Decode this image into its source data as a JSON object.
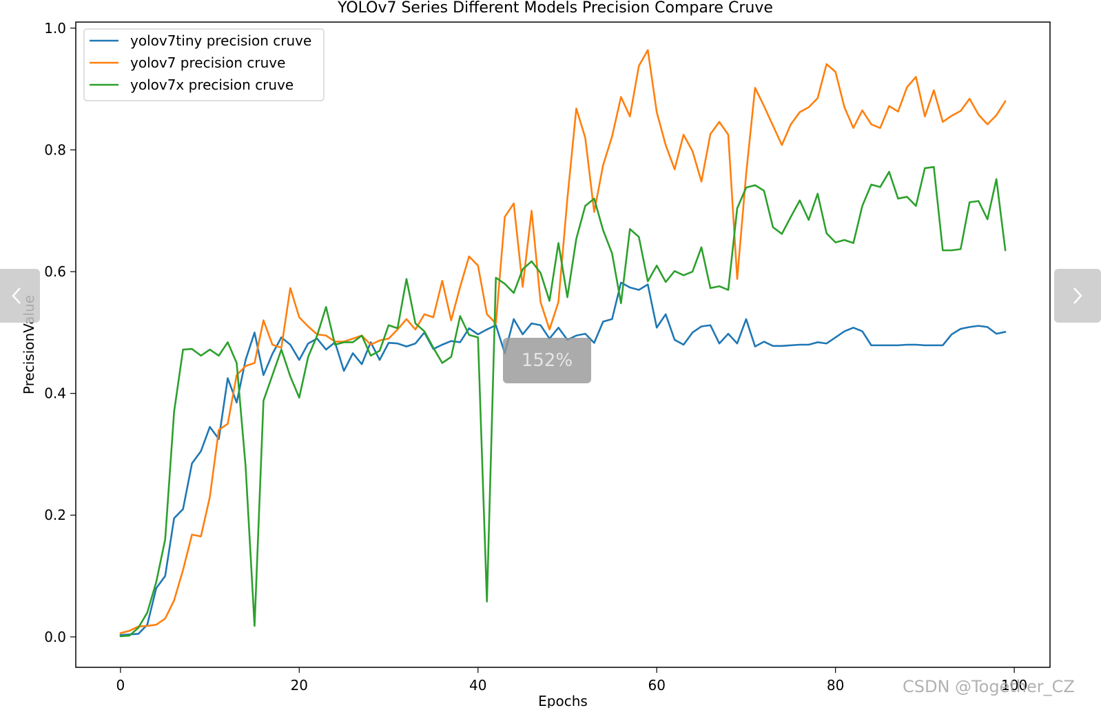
{
  "chart_data": {
    "type": "line",
    "title": "YOLOv7 Series Different Models Precision Compare Cruve",
    "xlabel": "Epochs",
    "ylabel": "PrecisionValue",
    "xlim": [
      -5,
      104
    ],
    "ylim": [
      -0.05,
      1.01
    ],
    "xticks": [
      0,
      20,
      40,
      60,
      80,
      100
    ],
    "yticks": [
      0.0,
      0.2,
      0.4,
      0.6,
      0.8,
      1.0
    ],
    "grid": false,
    "legend_position": "upper-left",
    "series": [
      {
        "name": "yolov7tiny precision cruve",
        "color": "#1f77b4",
        "values": [
          0.003,
          0.004,
          0.005,
          0.02,
          0.08,
          0.1,
          0.195,
          0.21,
          0.285,
          0.305,
          0.345,
          0.325,
          0.425,
          0.385,
          0.455,
          0.5,
          0.43,
          0.465,
          0.492,
          0.48,
          0.455,
          0.482,
          0.49,
          0.472,
          0.484,
          0.437,
          0.466,
          0.448,
          0.484,
          0.455,
          0.483,
          0.482,
          0.477,
          0.482,
          0.5,
          0.473,
          0.48,
          0.486,
          0.484,
          0.507,
          0.497,
          0.505,
          0.512,
          0.466,
          0.522,
          0.497,
          0.515,
          0.512,
          0.49,
          0.508,
          0.488,
          0.495,
          0.498,
          0.483,
          0.518,
          0.522,
          0.582,
          0.574,
          0.57,
          0.579,
          0.508,
          0.53,
          0.488,
          0.48,
          0.5,
          0.51,
          0.512,
          0.482,
          0.498,
          0.482,
          0.522,
          0.477,
          0.485,
          0.478,
          0.478,
          0.479,
          0.48,
          0.48,
          0.484,
          0.482,
          0.492,
          0.502,
          0.508,
          0.502,
          0.479,
          0.479,
          0.479,
          0.479,
          0.48,
          0.48,
          0.479,
          0.479,
          0.479,
          0.497,
          0.506,
          0.509,
          0.511,
          0.509,
          0.498,
          0.501
        ]
      },
      {
        "name": "yolov7 precision cruve",
        "color": "#ff7f0e",
        "values": [
          0.006,
          0.01,
          0.017,
          0.018,
          0.02,
          0.03,
          0.06,
          0.11,
          0.168,
          0.165,
          0.23,
          0.34,
          0.35,
          0.43,
          0.445,
          0.45,
          0.52,
          0.48,
          0.475,
          0.573,
          0.525,
          0.51,
          0.497,
          0.495,
          0.485,
          0.485,
          0.49,
          0.495,
          0.48,
          0.487,
          0.49,
          0.505,
          0.522,
          0.505,
          0.53,
          0.525,
          0.585,
          0.52,
          0.575,
          0.625,
          0.61,
          0.53,
          0.515,
          0.69,
          0.712,
          0.575,
          0.7,
          0.55,
          0.505,
          0.55,
          0.72,
          0.868,
          0.82,
          0.698,
          0.775,
          0.822,
          0.887,
          0.855,
          0.938,
          0.964,
          0.862,
          0.808,
          0.768,
          0.825,
          0.798,
          0.748,
          0.826,
          0.846,
          0.825,
          0.588,
          0.76,
          0.902,
          0.872,
          0.84,
          0.808,
          0.842,
          0.862,
          0.87,
          0.885,
          0.941,
          0.928,
          0.87,
          0.836,
          0.865,
          0.842,
          0.836,
          0.872,
          0.863,
          0.903,
          0.92,
          0.855,
          0.898,
          0.846,
          0.856,
          0.864,
          0.884,
          0.858,
          0.842,
          0.857,
          0.88
        ]
      },
      {
        "name": "yolov7x precision cruve",
        "color": "#2ca02c",
        "values": [
          0.001,
          0.002,
          0.015,
          0.04,
          0.09,
          0.16,
          0.37,
          0.472,
          0.473,
          0.462,
          0.472,
          0.462,
          0.484,
          0.45,
          0.28,
          0.018,
          0.388,
          0.43,
          0.472,
          0.428,
          0.393,
          0.46,
          0.495,
          0.542,
          0.48,
          0.484,
          0.484,
          0.495,
          0.462,
          0.47,
          0.512,
          0.507,
          0.588,
          0.515,
          0.502,
          0.475,
          0.45,
          0.46,
          0.527,
          0.496,
          0.492,
          0.058,
          0.59,
          0.58,
          0.565,
          0.604,
          0.617,
          0.598,
          0.552,
          0.647,
          0.558,
          0.654,
          0.708,
          0.72,
          0.668,
          0.63,
          0.548,
          0.67,
          0.657,
          0.584,
          0.61,
          0.583,
          0.601,
          0.594,
          0.6,
          0.64,
          0.573,
          0.576,
          0.57,
          0.704,
          0.738,
          0.742,
          0.733,
          0.673,
          0.662,
          0.69,
          0.717,
          0.685,
          0.728,
          0.663,
          0.648,
          0.652,
          0.647,
          0.708,
          0.743,
          0.739,
          0.764,
          0.72,
          0.723,
          0.708,
          0.77,
          0.772,
          0.635,
          0.635,
          0.637,
          0.714,
          0.716,
          0.686,
          0.752,
          0.635
        ]
      }
    ]
  },
  "ui": {
    "prev_icon": "chevron-left-icon",
    "next_icon": "chevron-right-icon",
    "zoom_label": "152%",
    "watermark": "CSDN @Together_CZ"
  }
}
